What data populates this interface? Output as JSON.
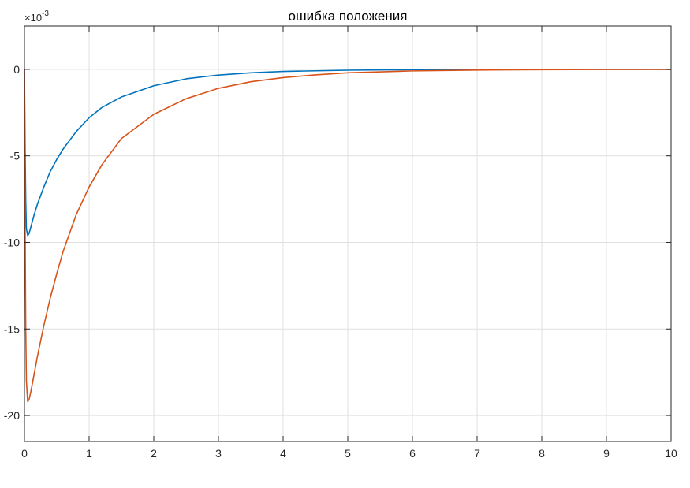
{
  "chart_data": {
    "type": "line",
    "title": "ошибка положения",
    "y_exponent_label": "×10",
    "y_exponent_power": "-3",
    "xlim": [
      0,
      10
    ],
    "ylim": [
      -21.5,
      2.5
    ],
    "x_ticks": [
      0,
      1,
      2,
      3,
      4,
      5,
      6,
      7,
      8,
      9,
      10
    ],
    "x_tick_labels": [
      "0",
      "1",
      "2",
      "3",
      "4",
      "5",
      "6",
      "7",
      "8",
      "9",
      "10"
    ],
    "y_ticks": [
      0,
      -5,
      -10,
      -15,
      -20
    ],
    "y_tick_labels": [
      "0",
      "-5",
      "-10",
      "-15",
      "-20"
    ],
    "grid": true,
    "series": [
      {
        "color": "#0072BD",
        "x": [
          0,
          0.01,
          0.02,
          0.03,
          0.05,
          0.07,
          0.1,
          0.15,
          0.2,
          0.3,
          0.4,
          0.5,
          0.6,
          0.8,
          1.0,
          1.2,
          1.5,
          2.0,
          2.5,
          3.0,
          3.5,
          4.0,
          5.0,
          6.0,
          7.0,
          8.0,
          9.0,
          10.0
        ],
        "values": [
          0,
          -4.5,
          -7.6,
          -9.2,
          -9.6,
          -9.5,
          -9.1,
          -8.4,
          -7.8,
          -6.8,
          -5.9,
          -5.2,
          -4.6,
          -3.6,
          -2.8,
          -2.2,
          -1.6,
          -0.95,
          -0.55,
          -0.33,
          -0.2,
          -0.12,
          -0.05,
          -0.02,
          -0.01,
          0,
          0,
          0
        ]
      },
      {
        "color": "#D95319",
        "x": [
          0,
          0.01,
          0.02,
          0.03,
          0.05,
          0.07,
          0.1,
          0.15,
          0.2,
          0.3,
          0.4,
          0.5,
          0.6,
          0.8,
          1.0,
          1.2,
          1.5,
          2.0,
          2.5,
          3.0,
          3.5,
          4.0,
          4.5,
          5.0,
          6.0,
          7.0,
          8.0,
          9.0,
          10.0
        ],
        "values": [
          0,
          -9.0,
          -15.0,
          -18.0,
          -19.2,
          -19.1,
          -18.6,
          -17.6,
          -16.6,
          -14.8,
          -13.2,
          -11.8,
          -10.5,
          -8.4,
          -6.8,
          -5.5,
          -4.0,
          -2.6,
          -1.7,
          -1.1,
          -0.72,
          -0.48,
          -0.32,
          -0.2,
          -0.09,
          -0.04,
          -0.02,
          -0.01,
          0
        ]
      }
    ]
  }
}
